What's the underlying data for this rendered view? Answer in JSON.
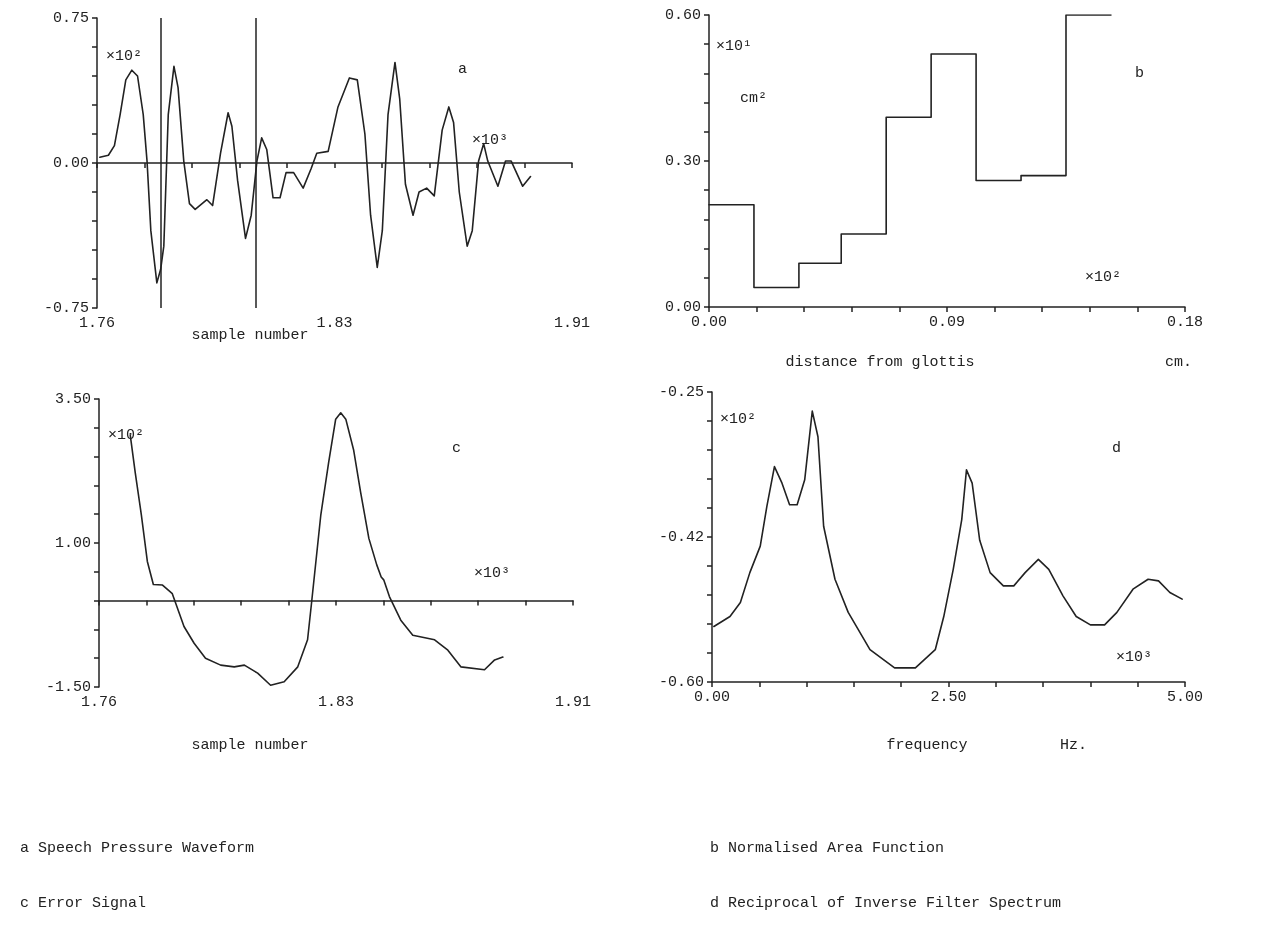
{
  "chart_data": [
    {
      "type": "line",
      "title": "a Speech Pressure Waveform",
      "xlabel": "sample number",
      "annotations": [
        "×10²",
        "a",
        "×10³"
      ],
      "marker": "none",
      "line_style": "solid",
      "xlim": [
        1.76,
        1.91
      ],
      "xticks": [
        {
          "value": 1.76,
          "label": "1.76"
        },
        {
          "value": 1.775,
          "label": null
        },
        {
          "value": 1.79,
          "label": null
        },
        {
          "value": 1.805,
          "label": null
        },
        {
          "value": 1.82,
          "label": null
        },
        {
          "value": 1.835,
          "label": "1.83"
        },
        {
          "value": 1.85,
          "label": null
        },
        {
          "value": 1.865,
          "label": null
        },
        {
          "value": 1.88,
          "label": null
        },
        {
          "value": 1.895,
          "label": null
        },
        {
          "value": 1.91,
          "label": "1.91"
        }
      ],
      "ylim": [
        -0.75,
        0.75
      ],
      "yticks": [
        {
          "value": -0.75,
          "label": "-0.75"
        },
        {
          "value": -0.6,
          "label": null
        },
        {
          "value": -0.45,
          "label": null
        },
        {
          "value": -0.3,
          "label": null
        },
        {
          "value": -0.15,
          "label": null
        },
        {
          "value": 0,
          "label": "0.00"
        },
        {
          "value": 0.15,
          "label": null
        },
        {
          "value": 0.3,
          "label": null
        },
        {
          "value": 0.45,
          "label": null
        },
        {
          "value": 0.6,
          "label": null
        },
        {
          "value": 0.75,
          "label": "0.75"
        }
      ],
      "ref_lines": [
        {
          "axis": "x",
          "value": 1.78
        },
        {
          "axis": "x",
          "value": 1.81
        }
      ],
      "series": [
        {
          "color": "#222222",
          "x": [
            1.7609,
            1.7636,
            1.7655,
            1.7673,
            1.7691,
            1.771,
            1.7728,
            1.7746,
            1.7758,
            1.777,
            1.7789,
            1.7801,
            1.7811,
            1.7825,
            1.7843,
            1.7856,
            1.7874,
            1.7892,
            1.791,
            1.7947,
            1.7965,
            1.799,
            1.8014,
            1.8026,
            1.8044,
            1.8069,
            1.8087,
            1.8105,
            1.812,
            1.8136,
            1.8156,
            1.8178,
            1.8197,
            1.8221,
            1.8251,
            1.8276,
            1.8294,
            1.833,
            1.8361,
            1.8397,
            1.8422,
            1.8446,
            1.8464,
            1.8485,
            1.8501,
            1.8519,
            1.8541,
            1.8556,
            1.8574,
            1.8598,
            1.8617,
            1.8641,
            1.8665,
            1.869,
            1.8711,
            1.8726,
            1.8744,
            1.8769,
            1.8785,
            1.8805,
            1.8821,
            1.8834,
            1.8866,
            1.889,
            1.8908,
            1.8944,
            1.8969
          ],
          "values": [
            0.03,
            0.04,
            0.09,
            0.25,
            0.43,
            0.48,
            0.45,
            0.25,
            0.01,
            -0.35,
            -0.62,
            -0.55,
            -0.43,
            0.25,
            0.5,
            0.39,
            0.01,
            -0.21,
            -0.24,
            -0.19,
            -0.22,
            0.05,
            0.26,
            0.19,
            -0.09,
            -0.39,
            -0.27,
            0.01,
            0.13,
            0.07,
            -0.18,
            -0.18,
            -0.05,
            -0.05,
            -0.13,
            -0.03,
            0.05,
            0.06,
            0.29,
            0.44,
            0.43,
            0.15,
            -0.27,
            -0.54,
            -0.35,
            0.25,
            0.52,
            0.33,
            -0.11,
            -0.27,
            -0.15,
            -0.13,
            -0.17,
            0.17,
            0.29,
            0.21,
            -0.15,
            -0.43,
            -0.35,
            0.01,
            0.1,
            0.01,
            -0.12,
            0.01,
            0.01,
            -0.12,
            -0.07
          ]
        }
      ]
    },
    {
      "type": "step",
      "title": "b Normalised Area Function",
      "xlabel": "distance from glottis",
      "annotations": [
        "×10¹",
        "cm²",
        "b",
        "×10²",
        "cm."
      ],
      "grid": false,
      "marker": "none",
      "line_style": "solid",
      "xlim": [
        0,
        0.18
      ],
      "xticks": [
        {
          "value": 0,
          "label": "0.00"
        },
        {
          "value": 0.018,
          "label": null
        },
        {
          "value": 0.036,
          "label": null
        },
        {
          "value": 0.054,
          "label": null
        },
        {
          "value": 0.072,
          "label": null
        },
        {
          "value": 0.09,
          "label": "0.09"
        },
        {
          "value": 0.108,
          "label": null
        },
        {
          "value": 0.126,
          "label": null
        },
        {
          "value": 0.144,
          "label": null
        },
        {
          "value": 0.162,
          "label": null
        },
        {
          "value": 0.18,
          "label": "0.18"
        }
      ],
      "ylim": [
        0,
        0.6
      ],
      "yticks": [
        {
          "value": 0,
          "label": "0.00"
        },
        {
          "value": 0.06,
          "label": null
        },
        {
          "value": 0.12,
          "label": null
        },
        {
          "value": 0.18,
          "label": null
        },
        {
          "value": 0.24,
          "label": null
        },
        {
          "value": 0.3,
          "label": "0.30"
        },
        {
          "value": 0.36,
          "label": null
        },
        {
          "value": 0.42,
          "label": null
        },
        {
          "value": 0.48,
          "label": null
        },
        {
          "value": 0.54,
          "label": null
        },
        {
          "value": 0.6,
          "label": "0.60"
        }
      ],
      "series": [
        {
          "color": "#222222",
          "x": [
            0,
            0.017,
            0.034,
            0.05,
            0.067,
            0.084,
            0.101,
            0.118,
            0.135,
            0.152
          ],
          "values": [
            0.21,
            0.04,
            0.09,
            0.15,
            0.39,
            0.52,
            0.26,
            0.27,
            0.6,
            0.6
          ]
        }
      ]
    },
    {
      "type": "line",
      "title": "c Error Signal",
      "xlabel": "sample number",
      "annotations": [
        "×10²",
        "c",
        "×10³"
      ],
      "marker": "none",
      "line_style": "solid",
      "xlim": [
        1.76,
        1.91
      ],
      "xticks": [
        {
          "value": 1.76,
          "label": "1.76"
        },
        {
          "value": 1.775,
          "label": null
        },
        {
          "value": 1.79,
          "label": null
        },
        {
          "value": 1.805,
          "label": null
        },
        {
          "value": 1.82,
          "label": null
        },
        {
          "value": 1.835,
          "label": "1.83"
        },
        {
          "value": 1.85,
          "label": null
        },
        {
          "value": 1.865,
          "label": null
        },
        {
          "value": 1.88,
          "label": null
        },
        {
          "value": 1.895,
          "label": null
        },
        {
          "value": 1.91,
          "label": "1.91"
        }
      ],
      "ylim": [
        -1.5,
        3.5
      ],
      "yticks": [
        {
          "value": -1.5,
          "label": "-1.50"
        },
        {
          "value": -1,
          "label": null
        },
        {
          "value": -0.5,
          "label": null
        },
        {
          "value": 0,
          "label": null
        },
        {
          "value": 0.5,
          "label": null
        },
        {
          "value": 1,
          "label": "1.00"
        },
        {
          "value": 1.5,
          "label": null
        },
        {
          "value": 2,
          "label": null
        },
        {
          "value": 2.5,
          "label": null
        },
        {
          "value": 3,
          "label": null
        },
        {
          "value": 3.5,
          "label": "3.50"
        }
      ],
      "series": [
        {
          "color": "#222222",
          "x": [
            1.7699,
            1.7715,
            1.7734,
            1.7753,
            1.7772,
            1.7801,
            1.7832,
            1.7869,
            1.7901,
            1.7937,
            1.7985,
            1.8028,
            1.806,
            1.8102,
            1.8143,
            1.8186,
            1.8229,
            1.826,
            1.8273,
            1.8302,
            1.8327,
            1.8349,
            1.8365,
            1.8381,
            1.8406,
            1.8428,
            1.8454,
            1.8479,
            1.8493,
            1.8501,
            1.8519,
            1.8555,
            1.8593,
            1.8662,
            1.8704,
            1.8745,
            1.882,
            1.8852,
            1.8878
          ],
          "values": [
            2.87,
            2.21,
            1.49,
            0.68,
            0.28,
            0.27,
            0.12,
            -0.45,
            -0.74,
            -1.0,
            -1.12,
            -1.15,
            -1.12,
            -1.26,
            -1.47,
            -1.41,
            -1.15,
            -0.68,
            -0.02,
            1.49,
            2.41,
            3.15,
            3.26,
            3.15,
            2.61,
            1.88,
            1.08,
            0.62,
            0.41,
            0.36,
            0.07,
            -0.34,
            -0.6,
            -0.68,
            -0.86,
            -1.15,
            -1.2,
            -1.03,
            -0.98
          ]
        }
      ]
    },
    {
      "type": "line",
      "title": "d Reciprocal of Inverse Filter Spectrum",
      "xlabel": "frequency",
      "annotations": [
        "×10²",
        "d",
        "×10³",
        "Hz."
      ],
      "grid": false,
      "marker": "none",
      "line_style": "solid",
      "xlim": [
        0,
        5
      ],
      "xticks": [
        {
          "value": 0,
          "label": "0.00"
        },
        {
          "value": 0.5,
          "label": null
        },
        {
          "value": 1,
          "label": null
        },
        {
          "value": 1.5,
          "label": null
        },
        {
          "value": 2,
          "label": null
        },
        {
          "value": 2.5,
          "label": "2.50"
        },
        {
          "value": 3,
          "label": null
        },
        {
          "value": 3.5,
          "label": null
        },
        {
          "value": 4,
          "label": null
        },
        {
          "value": 4.5,
          "label": null
        },
        {
          "value": 5,
          "label": "5.00"
        }
      ],
      "ylim": [
        -0.6,
        -0.25
      ],
      "yticks": [
        {
          "value": -0.6,
          "label": "-0.60"
        },
        {
          "value": -0.565,
          "label": null
        },
        {
          "value": -0.53,
          "label": null
        },
        {
          "value": -0.495,
          "label": null
        },
        {
          "value": -0.46,
          "label": null
        },
        {
          "value": -0.425,
          "label": "-0.42"
        },
        {
          "value": -0.39,
          "label": null
        },
        {
          "value": -0.355,
          "label": null
        },
        {
          "value": -0.32,
          "label": null
        },
        {
          "value": -0.285,
          "label": null
        },
        {
          "value": -0.25,
          "label": "-0.25"
        }
      ],
      "series": [
        {
          "color": "#222222",
          "x": [
            0.02,
            0.19,
            0.3,
            0.4,
            0.51,
            0.58,
            0.66,
            0.74,
            0.82,
            0.9,
            0.98,
            1.06,
            1.12,
            1.18,
            1.3,
            1.44,
            1.67,
            1.93,
            2.15,
            2.36,
            2.45,
            2.55,
            2.64,
            2.69,
            2.75,
            2.83,
            2.94,
            3.08,
            3.19,
            3.31,
            3.45,
            3.56,
            3.71,
            3.85,
            4.0,
            4.15,
            4.28,
            4.45,
            4.61,
            4.72,
            4.84,
            4.97
          ],
          "values": [
            -0.533,
            -0.521,
            -0.504,
            -0.468,
            -0.436,
            -0.388,
            -0.34,
            -0.36,
            -0.386,
            -0.386,
            -0.356,
            -0.273,
            -0.304,
            -0.412,
            -0.476,
            -0.516,
            -0.561,
            -0.583,
            -0.583,
            -0.561,
            -0.521,
            -0.464,
            -0.404,
            -0.344,
            -0.36,
            -0.429,
            -0.468,
            -0.484,
            -0.484,
            -0.468,
            -0.452,
            -0.464,
            -0.496,
            -0.521,
            -0.531,
            -0.531,
            -0.516,
            -0.488,
            -0.476,
            -0.478,
            -0.492,
            -0.5
          ]
        }
      ]
    }
  ]
}
